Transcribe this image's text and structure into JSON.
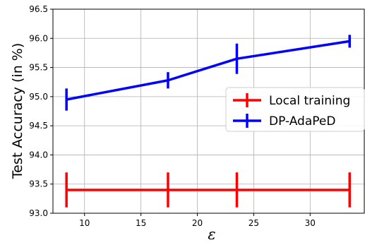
{
  "chart_data": {
    "type": "line",
    "xlabel": "ε",
    "ylabel": "Test Accuracy (in %)",
    "xlim": [
      7.2,
      34.8
    ],
    "ylim": [
      93.0,
      96.5
    ],
    "x_ticks": [
      10,
      15,
      20,
      25,
      30
    ],
    "y_ticks": [
      93.0,
      93.5,
      94.0,
      94.5,
      95.0,
      95.5,
      96.0,
      96.5
    ],
    "x_tick_labels": [
      "10",
      "15",
      "20",
      "25",
      "30"
    ],
    "y_tick_labels": [
      "93.0",
      "93.5",
      "94.0",
      "94.5",
      "95.0",
      "95.5",
      "96.0",
      "96.5"
    ],
    "grid": true,
    "legend_position": "center-right",
    "series": [
      {
        "name": "Local training",
        "color": "#ff0000",
        "x": [
          8.4,
          17.4,
          23.5,
          33.5
        ],
        "y": [
          93.4,
          93.4,
          93.4,
          93.4
        ],
        "yerr": [
          0.3,
          0.3,
          0.3,
          0.3
        ]
      },
      {
        "name": "DP-AdaPeD",
        "color": "#0000ff",
        "x": [
          8.4,
          17.4,
          23.5,
          33.5
        ],
        "y": [
          94.95,
          95.28,
          95.65,
          95.95
        ],
        "yerr": [
          0.19,
          0.14,
          0.26,
          0.11
        ]
      }
    ]
  }
}
